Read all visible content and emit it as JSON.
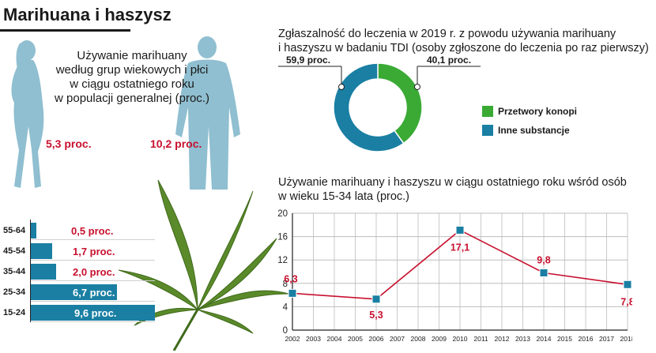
{
  "title": "Marihuana i haszysz",
  "silhouettes": {
    "caption_lines": [
      "Używanie marihuany",
      "według grup wiekowych i płci",
      "w ciągu ostatniego roku",
      "w populacji generalnej (proc.)"
    ],
    "women_value": "5,3 proc.",
    "men_value": "10,2 proc."
  },
  "chart_data": [
    {
      "type": "pie",
      "title_lines": [
        "Zgłaszalność do leczenia w 2019 r. z powodu używania marihuany",
        "i haszyszu w badaniu TDI (osoby zgłoszone do leczenia po raz pierwszy)"
      ],
      "slices": [
        {
          "label": "Przetwory konopi",
          "value": 40.1,
          "value_label": "40,1 proc.",
          "color": "#3aaa35"
        },
        {
          "label": "Inne substancje",
          "value": 59.9,
          "value_label": "59,9 proc.",
          "color": "#1a7fa3"
        }
      ]
    },
    {
      "type": "line",
      "title_lines": [
        "Używanie marihuany i haszyszu w ciągu ostatniego roku wśród osób",
        "w wieku 15-34 lata (proc.)"
      ],
      "x": [
        "2002",
        "2003",
        "2004",
        "2005",
        "2006",
        "2007",
        "2008",
        "2009",
        "2010",
        "2011",
        "2012",
        "2013",
        "2014",
        "2015",
        "2016",
        "2017",
        "2018"
      ],
      "points": [
        {
          "x": "2002",
          "y": 6.3,
          "label": "6,3"
        },
        {
          "x": "2006",
          "y": 5.3,
          "label": "5,3"
        },
        {
          "x": "2010",
          "y": 17.1,
          "label": "17,1"
        },
        {
          "x": "2014",
          "y": 9.8,
          "label": "9,8"
        },
        {
          "x": "2018",
          "y": 7.8,
          "label": "7,8"
        }
      ],
      "yticks": [
        "20",
        "16",
        "12",
        "8",
        "4",
        "0"
      ],
      "ylim": [
        0,
        20
      ],
      "grid": true,
      "line_color": "#c8102e",
      "marker_color": "#1a7fa3"
    },
    {
      "type": "bar",
      "orientation": "horizontal",
      "categories": [
        "55-64",
        "45-54",
        "35-44",
        "25-34",
        "15-24"
      ],
      "values": [
        0.5,
        1.7,
        2.0,
        6.7,
        9.6
      ],
      "value_labels": [
        "0,5 proc.",
        "1,7 proc.",
        "2,0 proc.",
        "6,7 proc.",
        "9,6 proc."
      ],
      "bar_color": "#1a7fa3"
    }
  ],
  "colors": {
    "accent_red": "#c8102e",
    "blue": "#1a7fa3",
    "green": "#3aaa35",
    "silhouette": "#8fbfd0",
    "leaf": "#5a8a2a"
  }
}
